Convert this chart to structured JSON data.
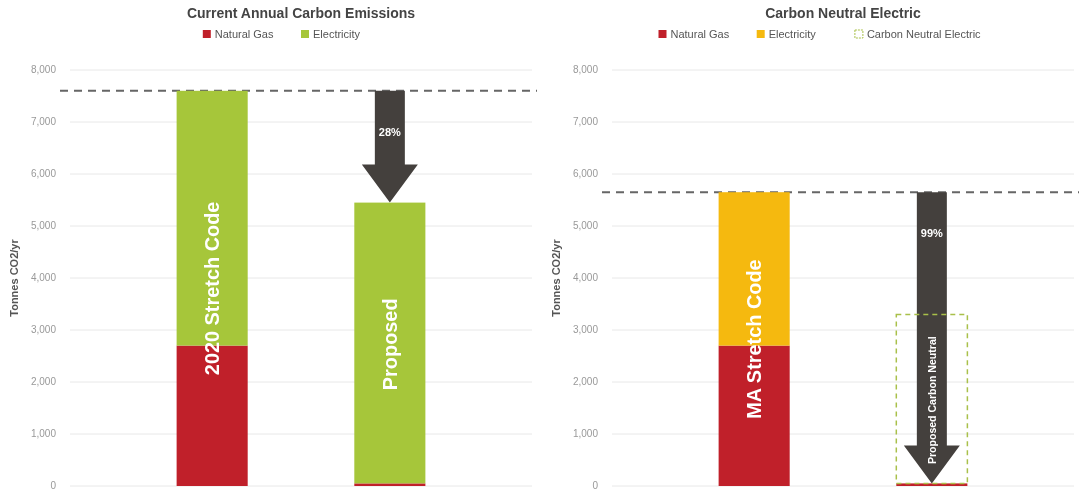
{
  "chart_data": [
    {
      "type": "bar",
      "title": "Current Annual Carbon Emissions",
      "ylabel": "Tonnes CO2/yr",
      "categories": [
        "2020 Stretch Code",
        "Proposed"
      ],
      "stacked": true,
      "series": [
        {
          "name": "Natural Gas",
          "color": "#c0202a",
          "values": [
            2700,
            50
          ]
        },
        {
          "name": "Electricity",
          "color": "#a6c63a",
          "values": [
            4900,
            5400
          ]
        }
      ],
      "ylim": [
        0,
        8000
      ],
      "yticks": [
        {
          "value": 0,
          "label": "0"
        },
        {
          "value": 1000,
          "label": "1,000"
        },
        {
          "value": 2000,
          "label": "2,000"
        },
        {
          "value": 3000,
          "label": "3,000"
        },
        {
          "value": 4000,
          "label": "4,000"
        },
        {
          "value": 5000,
          "label": "5,000"
        },
        {
          "value": 6000,
          "label": "6,000"
        },
        {
          "value": 7000,
          "label": "7,000"
        },
        {
          "value": 8000,
          "label": "8,000"
        }
      ],
      "grid": "y",
      "legend": "top",
      "ref_lines": [
        {
          "axis": "y",
          "value": 7600,
          "color": "#666666",
          "line_style": "dashed"
        }
      ],
      "annotations": [
        "28%"
      ]
    },
    {
      "type": "bar",
      "title": "Carbon Neutral Electric",
      "ylabel": "Tonnes CO2/yr",
      "categories": [
        "MA Stretch Code",
        "Proposed Carbon Neutral"
      ],
      "stacked": true,
      "series": [
        {
          "name": "Natural Gas",
          "color": "#c0202a",
          "values": [
            2700,
            50
          ]
        },
        {
          "name": "Electricity",
          "color": "#f5b90f",
          "values": [
            2950,
            0
          ]
        },
        {
          "name": "Carbon Neutral Electric",
          "color": "#a9c04a",
          "line_style": "dashed",
          "values": [
            0,
            3250
          ]
        }
      ],
      "ylim": [
        0,
        8000
      ],
      "yticks": [
        {
          "value": 0,
          "label": "0"
        },
        {
          "value": 1000,
          "label": "1,000"
        },
        {
          "value": 2000,
          "label": "2,000"
        },
        {
          "value": 3000,
          "label": "3,000"
        },
        {
          "value": 4000,
          "label": "4,000"
        },
        {
          "value": 5000,
          "label": "5,000"
        },
        {
          "value": 6000,
          "label": "6,000"
        },
        {
          "value": 7000,
          "label": "7,000"
        },
        {
          "value": 8000,
          "label": "8,000"
        }
      ],
      "grid": "y",
      "legend": "top",
      "ref_lines": [
        {
          "axis": "y",
          "value": 5650,
          "color": "#666666",
          "line_style": "dashed"
        }
      ],
      "annotations": [
        "99%"
      ]
    }
  ]
}
